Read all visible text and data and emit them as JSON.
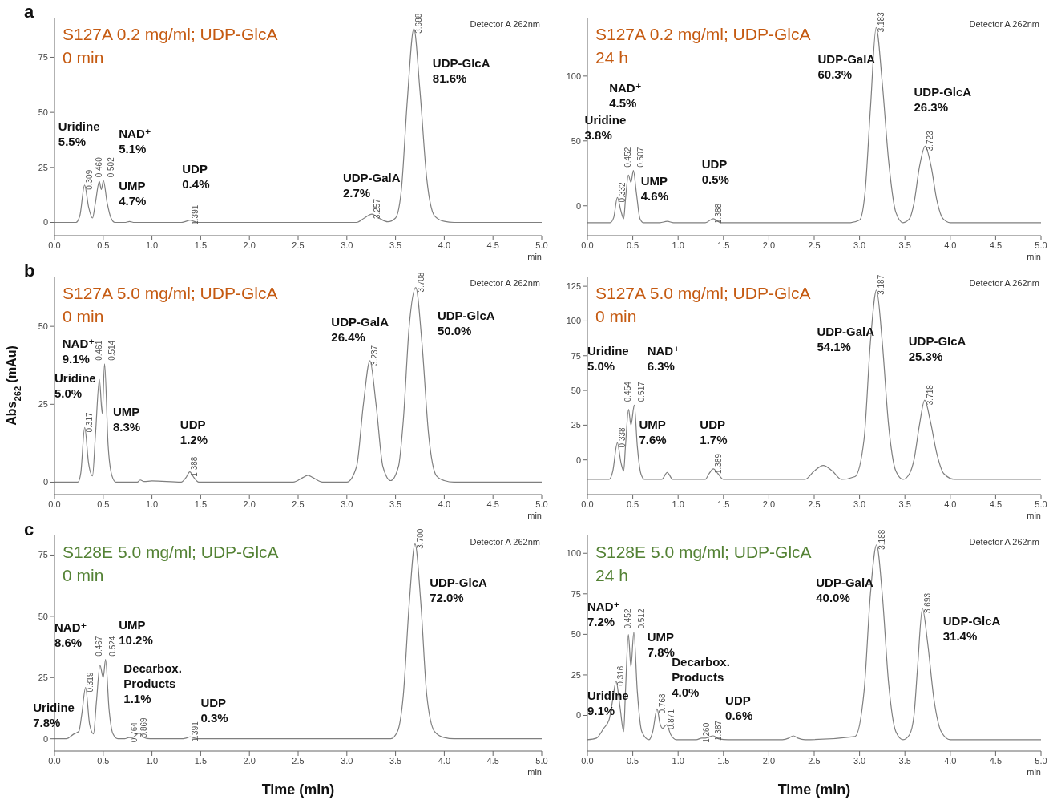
{
  "chart_data": [
    {
      "type": "line",
      "title": "S127A 0.2 mg/ml; UDP-GlcA",
      "subtitle": "0 min",
      "x": [
        0,
        0.22,
        0.26,
        0.309,
        0.35,
        0.39,
        0.42,
        0.46,
        0.48,
        0.502,
        0.54,
        0.58,
        0.62,
        0.72,
        0.77,
        0.82,
        1.3,
        1.35,
        1.391,
        1.43,
        1.48,
        3.1,
        3.18,
        3.257,
        3.33,
        3.42,
        3.5,
        3.56,
        3.62,
        3.688,
        3.75,
        3.82,
        3.9,
        4.0,
        4.1,
        5.0
      ],
      "series": [
        {
          "color": "#7f7f7f",
          "values": [
            0,
            0,
            3,
            17,
            7,
            2,
            9,
            18.6,
            15,
            19,
            9,
            2,
            0,
            0,
            0.4,
            0,
            0,
            0.5,
            1,
            0.5,
            0,
            0,
            2,
            3.8,
            2,
            0.3,
            2,
            15,
            55,
            88,
            60,
            20,
            3,
            0.5,
            0,
            0
          ]
        }
      ],
      "xlim": [
        0,
        5
      ],
      "xticks": [
        {
          "value": 0,
          "label": "0.0"
        },
        {
          "value": 0.5,
          "label": "0.5"
        },
        {
          "value": 1,
          "label": "1.0"
        },
        {
          "value": 1.5,
          "label": "1.5"
        },
        {
          "value": 2,
          "label": "2.0"
        },
        {
          "value": 2.5,
          "label": "2.5"
        },
        {
          "value": 3,
          "label": "3.0"
        },
        {
          "value": 3.5,
          "label": "3.5"
        },
        {
          "value": 4,
          "label": "4.0"
        },
        {
          "value": 4.5,
          "label": "4.5"
        },
        {
          "value": 5,
          "label": "5.0"
        }
      ],
      "ylim": [
        -6,
        93
      ],
      "yticks": [
        0,
        25,
        50,
        75
      ],
      "annotations": [
        "Detector A 262nm",
        "min",
        "a",
        "Uridine\n5.5%",
        "NAD⁺\n5.1%",
        "UMP\n4.7%",
        "UDP\n0.4%",
        "UDP-GalA\n2.7%",
        "UDP-GlcA\n81.6%",
        {
          "text": "0.309",
          "x": 0.309,
          "y": 17
        },
        {
          "text": "0.460",
          "x": 0.46,
          "y": 18.6
        },
        {
          "text": "0.502",
          "x": 0.502,
          "y": 19
        },
        {
          "text": "1.391",
          "x": 1.391,
          "y": 1
        },
        {
          "text": "3.257",
          "x": 3.257,
          "y": 3.8
        },
        {
          "text": "3.688",
          "x": 3.688,
          "y": 88
        }
      ]
    },
    {
      "type": "line",
      "title": "S127A 0.2 mg/ml; UDP-GlcA",
      "subtitle": "24 h",
      "x": [
        0,
        0.25,
        0.29,
        0.33,
        0.37,
        0.4,
        0.42,
        0.452,
        0.48,
        0.507,
        0.54,
        0.58,
        0.62,
        0.8,
        0.88,
        0.95,
        1.3,
        1.388,
        1.47,
        2.9,
        3.0,
        3.06,
        3.12,
        3.183,
        3.25,
        3.32,
        3.4,
        3.48,
        3.55,
        3.6,
        3.66,
        3.723,
        3.79,
        3.85,
        3.92,
        4.0,
        5.0
      ],
      "series": [
        {
          "color": "#7f7f7f",
          "values": [
            -13,
            -13,
            -9,
            6.4,
            -4,
            -10,
            5,
            23.8,
            18,
            27.2,
            10,
            -10,
            -13,
            -13,
            -12,
            -13,
            -13,
            -10,
            -13,
            -13,
            -11,
            10,
            75,
            137.4,
            95,
            35,
            -5,
            -13,
            -10,
            2,
            30,
            46,
            30,
            5,
            -10,
            -13,
            -13
          ]
        }
      ],
      "xlim": [
        0,
        5
      ],
      "xticks": [
        {
          "value": 0,
          "label": "0.0"
        },
        {
          "value": 0.5,
          "label": "0.5"
        },
        {
          "value": 1,
          "label": "1.0"
        },
        {
          "value": 1.5,
          "label": "1.5"
        },
        {
          "value": 2,
          "label": "2.0"
        },
        {
          "value": 2.5,
          "label": "2.5"
        },
        {
          "value": 3,
          "label": "3.0"
        },
        {
          "value": 3.5,
          "label": "3.5"
        },
        {
          "value": 4,
          "label": "4.0"
        },
        {
          "value": 4.5,
          "label": "4.5"
        },
        {
          "value": 5,
          "label": "5.0"
        }
      ],
      "ylim": [
        -23,
        145
      ],
      "yticks": [
        0,
        50,
        100
      ],
      "annotations": [
        "Detector A 262nm",
        "min",
        "Uridine\n3.8%",
        "NAD⁺\n4.5%",
        "UMP\n4.6%",
        "UDP\n0.5%",
        "UDP-GalA\n60.3%",
        "UDP-GlcA\n26.3%",
        {
          "text": "0.332",
          "x": 0.33,
          "y": 6.4
        },
        {
          "text": "0.452",
          "x": 0.452,
          "y": 23.8
        },
        {
          "text": "0.507",
          "x": 0.507,
          "y": 27.2
        },
        {
          "text": "1.388",
          "x": 1.388,
          "y": -10
        },
        {
          "text": "3.183",
          "x": 3.183,
          "y": 137.4
        },
        {
          "text": "3.723",
          "x": 3.723,
          "y": 46
        }
      ]
    },
    {
      "type": "line",
      "title": "S127A 5.0 mg/ml; UDP-GlcA",
      "subtitle": "0 min",
      "ylabel": "Abs$_{262}$ (mAu)",
      "x": [
        0,
        0.24,
        0.27,
        0.31,
        0.35,
        0.39,
        0.42,
        0.461,
        0.49,
        0.514,
        0.55,
        0.59,
        0.63,
        0.85,
        0.88,
        0.92,
        1.0,
        1.3,
        1.35,
        1.388,
        1.43,
        1.48,
        2.45,
        2.55,
        2.6,
        2.65,
        2.75,
        3.0,
        3.1,
        3.17,
        3.237,
        3.3,
        3.37,
        3.45,
        3.53,
        3.58,
        3.64,
        3.708,
        3.77,
        3.84,
        3.92,
        4.0,
        4.1,
        5.0
      ],
      "series": [
        {
          "color": "#7f7f7f",
          "values": [
            0,
            0,
            3,
            17.5,
            6,
            2,
            15,
            33,
            22,
            38,
            12,
            2,
            0,
            0,
            0.7,
            0.2,
            0.4,
            0,
            1.5,
            3.3,
            1.5,
            0,
            0,
            1.5,
            2.2,
            1.5,
            0,
            0,
            5,
            25,
            39,
            25,
            5,
            0.5,
            5,
            20,
            50,
            62.5,
            45,
            15,
            2,
            0.5,
            0,
            0
          ]
        }
      ],
      "xlim": [
        0,
        5
      ],
      "xticks": [
        {
          "value": 0,
          "label": "0.0"
        },
        {
          "value": 0.5,
          "label": "0.5"
        },
        {
          "value": 1,
          "label": "1.0"
        },
        {
          "value": 1.5,
          "label": "1.5"
        },
        {
          "value": 2,
          "label": "2.0"
        },
        {
          "value": 2.5,
          "label": "2.5"
        },
        {
          "value": 3,
          "label": "3.0"
        },
        {
          "value": 3.5,
          "label": "3.5"
        },
        {
          "value": 4,
          "label": "4.0"
        },
        {
          "value": 4.5,
          "label": "4.5"
        },
        {
          "value": 5,
          "label": "5.0"
        }
      ],
      "ylim": [
        -4,
        66
      ],
      "yticks": [
        0,
        25,
        50
      ],
      "annotations": [
        "Detector A 262nm",
        "min",
        "b",
        "Uridine\n5.0%",
        "NAD⁺\n9.1%",
        "UMP\n8.3%",
        "UDP\n1.2%",
        "UDP-GalA\n26.4%",
        "UDP-GlcA\n50.0%",
        {
          "text": "0.317",
          "x": 0.31,
          "y": 17.5
        },
        {
          "text": "0.461",
          "x": 0.461,
          "y": 33
        },
        {
          "text": "0.514",
          "x": 0.514,
          "y": 38
        },
        {
          "text": "1.388",
          "x": 1.388,
          "y": 3.3
        },
        {
          "text": "3.237",
          "x": 3.237,
          "y": 39
        },
        {
          "text": "3.708",
          "x": 3.708,
          "y": 62.5
        }
      ]
    },
    {
      "type": "line",
      "title": "S127A 5.0 mg/ml; UDP-GlcA",
      "subtitle": "0 min",
      "x": [
        0,
        0.24,
        0.28,
        0.33,
        0.37,
        0.4,
        0.42,
        0.454,
        0.48,
        0.517,
        0.55,
        0.59,
        0.63,
        0.82,
        0.88,
        0.94,
        1.3,
        1.34,
        1.389,
        1.44,
        1.5,
        2.4,
        2.5,
        2.6,
        2.7,
        2.8,
        2.95,
        3.05,
        3.12,
        3.187,
        3.25,
        3.32,
        3.4,
        3.48,
        3.55,
        3.6,
        3.66,
        3.718,
        3.78,
        3.85,
        3.93,
        4.05,
        5.0
      ],
      "series": [
        {
          "color": "#7f7f7f",
          "values": [
            -14,
            -14,
            -8,
            12.3,
            -2,
            -8,
            10,
            36.4,
            25,
            39.5,
            10,
            -10,
            -14,
            -14,
            -9,
            -14,
            -14,
            -10,
            -6.5,
            -10,
            -14,
            -14,
            -8,
            -4,
            -8,
            -14,
            -12,
            15,
            85,
            122.3,
            85,
            25,
            -8,
            -14,
            -10,
            0,
            25,
            43,
            28,
            5,
            -10,
            -14,
            -14
          ]
        }
      ],
      "xlim": [
        0,
        5
      ],
      "xticks": [
        {
          "value": 0,
          "label": "0.0"
        },
        {
          "value": 0.5,
          "label": "0.5"
        },
        {
          "value": 1,
          "label": "1.0"
        },
        {
          "value": 1.5,
          "label": "1.5"
        },
        {
          "value": 2,
          "label": "2.0"
        },
        {
          "value": 2.5,
          "label": "2.5"
        },
        {
          "value": 3,
          "label": "3.0"
        },
        {
          "value": 3.5,
          "label": "3.5"
        },
        {
          "value": 4,
          "label": "4.0"
        },
        {
          "value": 4.5,
          "label": "4.5"
        },
        {
          "value": 5,
          "label": "5.0"
        }
      ],
      "ylim": [
        -25,
        132
      ],
      "yticks": [
        0,
        25,
        50,
        75,
        100,
        125
      ],
      "annotations": [
        "Detector A 262nm",
        "min",
        "Uridine\n5.0%",
        "NAD⁺\n6.3%",
        "UMP\n7.6%",
        "UDP\n1.7%",
        "UDP-GalA\n54.1%",
        "UDP-GlcA\n25.3%",
        {
          "text": "0.338",
          "x": 0.33,
          "y": 12.3
        },
        {
          "text": "0.454",
          "x": 0.454,
          "y": 36.4
        },
        {
          "text": "0.517",
          "x": 0.517,
          "y": 39.5
        },
        {
          "text": "1.389",
          "x": 1.389,
          "y": -6.5
        },
        {
          "text": "3.187",
          "x": 3.187,
          "y": 122.3
        },
        {
          "text": "3.718",
          "x": 3.718,
          "y": 43
        }
      ]
    },
    {
      "type": "line",
      "title": "S128E 5.0 mg/ml; UDP-GlcA",
      "subtitle": "0 min",
      "xlabel": "Time (min)",
      "x": [
        0,
        0.12,
        0.2,
        0.25,
        0.28,
        0.319,
        0.36,
        0.4,
        0.43,
        0.467,
        0.5,
        0.524,
        0.56,
        0.6,
        0.65,
        0.72,
        0.764,
        0.8,
        0.869,
        0.92,
        0.98,
        1.3,
        1.35,
        1.391,
        1.44,
        1.5,
        3.45,
        3.52,
        3.58,
        3.64,
        3.7,
        3.76,
        3.82,
        3.9,
        4.0,
        4.1,
        5.0
      ],
      "series": [
        {
          "color": "#7f7f7f",
          "values": [
            0,
            0,
            2,
            3,
            10,
            21,
            6,
            2,
            15,
            30,
            25,
            32.4,
            12,
            2,
            0,
            0,
            0.5,
            0.5,
            2.4,
            0.5,
            0,
            0,
            0.3,
            0.8,
            0.3,
            0,
            0,
            3,
            18,
            55,
            79.5,
            55,
            18,
            3,
            0.5,
            0,
            0
          ]
        }
      ],
      "xlim": [
        0,
        5
      ],
      "xticks": [
        {
          "value": 0,
          "label": "0.0"
        },
        {
          "value": 0.5,
          "label": "0.5"
        },
        {
          "value": 1,
          "label": "1.0"
        },
        {
          "value": 1.5,
          "label": "1.5"
        },
        {
          "value": 2,
          "label": "2.0"
        },
        {
          "value": 2.5,
          "label": "2.5"
        },
        {
          "value": 3,
          "label": "3.0"
        },
        {
          "value": 3.5,
          "label": "3.5"
        },
        {
          "value": 4,
          "label": "4.0"
        },
        {
          "value": 4.5,
          "label": "4.5"
        },
        {
          "value": 5,
          "label": "5.0"
        }
      ],
      "ylim": [
        -5,
        83
      ],
      "yticks": [
        0,
        25,
        50,
        75
      ],
      "annotations": [
        "Detector A 262nm",
        "min",
        "c",
        "Uridine\n7.8%",
        "NAD⁺\n8.6%",
        "UMP\n10.2%",
        "Decarbox.\nProducts\n1.1%",
        "UDP\n0.3%",
        "UDP-GlcA\n72.0%",
        {
          "text": "0.319",
          "x": 0.319,
          "y": 21
        },
        {
          "text": "0.467",
          "x": 0.467,
          "y": 30
        },
        {
          "text": "0.524",
          "x": 0.524,
          "y": 32.4
        },
        {
          "text": "0.764",
          "x": 0.764,
          "y": 0.5
        },
        {
          "text": "0.869",
          "x": 0.869,
          "y": 2.4
        },
        {
          "text": "1.391",
          "x": 1.391,
          "y": 0.8
        },
        {
          "text": "3.700",
          "x": 3.7,
          "y": 79.5
        }
      ]
    },
    {
      "type": "line",
      "title": "S128E 5.0 mg/ml; UDP-GlcA",
      "subtitle": "24 h",
      "xlabel": "Time (min)",
      "x": [
        0,
        0.1,
        0.18,
        0.24,
        0.28,
        0.316,
        0.36,
        0.4,
        0.42,
        0.452,
        0.48,
        0.512,
        0.55,
        0.6,
        0.68,
        0.72,
        0.768,
        0.8,
        0.83,
        0.871,
        0.92,
        0.98,
        1.2,
        1.26,
        1.3,
        1.387,
        1.45,
        1.55,
        2.15,
        2.22,
        2.27,
        2.32,
        2.4,
        2.95,
        3.05,
        3.12,
        3.188,
        3.25,
        3.32,
        3.4,
        3.48,
        3.55,
        3.6,
        3.64,
        3.693,
        3.75,
        3.82,
        3.9,
        4.0,
        5.0
      ],
      "series": [
        {
          "color": "#7f7f7f",
          "values": [
            -15,
            -14,
            -8,
            -2.5,
            10,
            21.2,
            5,
            -10,
            15,
            49.9,
            30,
            51.4,
            15,
            -10,
            -15,
            -10,
            4,
            -5,
            -8,
            -5.7,
            -12,
            -15,
            -15,
            -14,
            -14,
            -12.6,
            -14.5,
            -15,
            -15,
            -14,
            -12.6,
            -14,
            -15,
            -13,
            15,
            75,
            105.2,
            75,
            20,
            -10,
            -15,
            -12,
            0,
            30,
            66,
            45,
            10,
            -10,
            -15,
            -15
          ]
        }
      ],
      "xlim": [
        0,
        5
      ],
      "xticks": [
        {
          "value": 0,
          "label": "0.0"
        },
        {
          "value": 0.5,
          "label": "0.5"
        },
        {
          "value": 1,
          "label": "1.0"
        },
        {
          "value": 1.5,
          "label": "1.5"
        },
        {
          "value": 2,
          "label": "2.0"
        },
        {
          "value": 2.5,
          "label": "2.5"
        },
        {
          "value": 3,
          "label": "3.0"
        },
        {
          "value": 3.5,
          "label": "3.5"
        },
        {
          "value": 4,
          "label": "4.0"
        },
        {
          "value": 4.5,
          "label": "4.5"
        },
        {
          "value": 5,
          "label": "5.0"
        }
      ],
      "ylim": [
        -22,
        111
      ],
      "yticks": [
        0,
        25,
        50,
        75,
        100
      ],
      "annotations": [
        "Detector A 262nm",
        "min",
        "Uridine\n9.1%",
        "NAD⁺\n7.2%",
        "UMP\n7.8%",
        "Decarbox.\nProducts\n4.0%",
        "UDP\n0.6%",
        "UDP-GalA\n40.0%",
        "UDP-GlcA\n31.4%",
        {
          "text": "0.316",
          "x": 0.316,
          "y": 21.2
        },
        {
          "text": "0.452",
          "x": 0.452,
          "y": 49.9
        },
        {
          "text": "0.512",
          "x": 0.512,
          "y": 51.4
        },
        {
          "text": "0.768",
          "x": 0.768,
          "y": 4
        },
        {
          "text": "0.871",
          "x": 0.871,
          "y": -5.7
        },
        {
          "text": "1.260",
          "x": 1.26,
          "y": -14
        },
        {
          "text": "1.387",
          "x": 1.387,
          "y": -12.6
        },
        {
          "text": "3.188",
          "x": 3.188,
          "y": 105.2
        },
        {
          "text": "3.693",
          "x": 3.693,
          "y": 66
        }
      ]
    }
  ]
}
